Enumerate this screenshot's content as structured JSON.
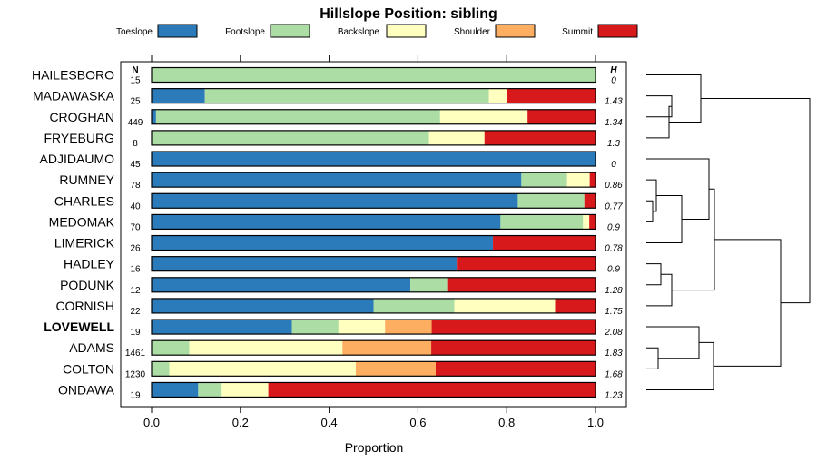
{
  "chart_data": {
    "type": "bar",
    "title": "Hillslope Position: sibling",
    "xlabel": "Proportion",
    "xlim": [
      0,
      1
    ],
    "xticks": [
      "0.0",
      "0.2",
      "0.4",
      "0.6",
      "0.8",
      "1.0"
    ],
    "n_header": "N",
    "h_header": "H",
    "legend": [
      {
        "name": "Toeslope",
        "color": "#2b7bba"
      },
      {
        "name": "Footslope",
        "color": "#abdda4"
      },
      {
        "name": "Backslope",
        "color": "#ffffbf"
      },
      {
        "name": "Shoulder",
        "color": "#fdae61"
      },
      {
        "name": "Summit",
        "color": "#d7191c"
      }
    ],
    "rows": [
      {
        "name": "HAILESBORO",
        "n": "15",
        "h": "0",
        "bold": false,
        "values": [
          0,
          1.0,
          0,
          0,
          0
        ]
      },
      {
        "name": "MADAWASKA",
        "n": "25",
        "h": "1.43",
        "bold": false,
        "values": [
          0.12,
          0.64,
          0.04,
          0,
          0.2
        ]
      },
      {
        "name": "CROGHAN",
        "n": "449",
        "h": "1.34",
        "bold": false,
        "values": [
          0.01,
          0.64,
          0.197,
          0,
          0.153
        ]
      },
      {
        "name": "FRYEBURG",
        "n": "8",
        "h": "1.3",
        "bold": false,
        "values": [
          0,
          0.625,
          0.125,
          0,
          0.25
        ]
      },
      {
        "name": "ADJIDAUMO",
        "n": "45",
        "h": "0",
        "bold": false,
        "values": [
          1.0,
          0,
          0,
          0,
          0
        ]
      },
      {
        "name": "RUMNEY",
        "n": "78",
        "h": "0.86",
        "bold": false,
        "values": [
          0.833,
          0.103,
          0.051,
          0,
          0.013
        ]
      },
      {
        "name": "CHARLES",
        "n": "40",
        "h": "0.77",
        "bold": false,
        "values": [
          0.825,
          0.15,
          0,
          0,
          0.025
        ]
      },
      {
        "name": "MEDOMAK",
        "n": "70",
        "h": "0.9",
        "bold": false,
        "values": [
          0.786,
          0.186,
          0.014,
          0,
          0.014
        ]
      },
      {
        "name": "LIMERICK",
        "n": "26",
        "h": "0.78",
        "bold": false,
        "values": [
          0.769,
          0,
          0,
          0,
          0.231
        ]
      },
      {
        "name": "HADLEY",
        "n": "16",
        "h": "0.9",
        "bold": false,
        "values": [
          0.6875,
          0,
          0,
          0,
          0.3125
        ]
      },
      {
        "name": "PODUNK",
        "n": "12",
        "h": "1.28",
        "bold": false,
        "values": [
          0.583,
          0.083,
          0,
          0,
          0.334
        ]
      },
      {
        "name": "CORNISH",
        "n": "22",
        "h": "1.75",
        "bold": false,
        "values": [
          0.5,
          0.182,
          0.227,
          0,
          0.091
        ]
      },
      {
        "name": "LOVEWELL",
        "n": "19",
        "h": "2.08",
        "bold": true,
        "values": [
          0.316,
          0.105,
          0.105,
          0.105,
          0.369
        ]
      },
      {
        "name": "ADAMS",
        "n": "1461",
        "h": "1.83",
        "bold": false,
        "values": [
          0,
          0.085,
          0.345,
          0.2,
          0.37
        ]
      },
      {
        "name": "COLTON",
        "n": "1230",
        "h": "1.68",
        "bold": false,
        "values": [
          0,
          0.04,
          0.42,
          0.18,
          0.36
        ]
      },
      {
        "name": "ONDAWA",
        "n": "19",
        "h": "1.23",
        "bold": false,
        "values": [
          0.105,
          0.053,
          0.105,
          0,
          0.737
        ]
      }
    ]
  }
}
